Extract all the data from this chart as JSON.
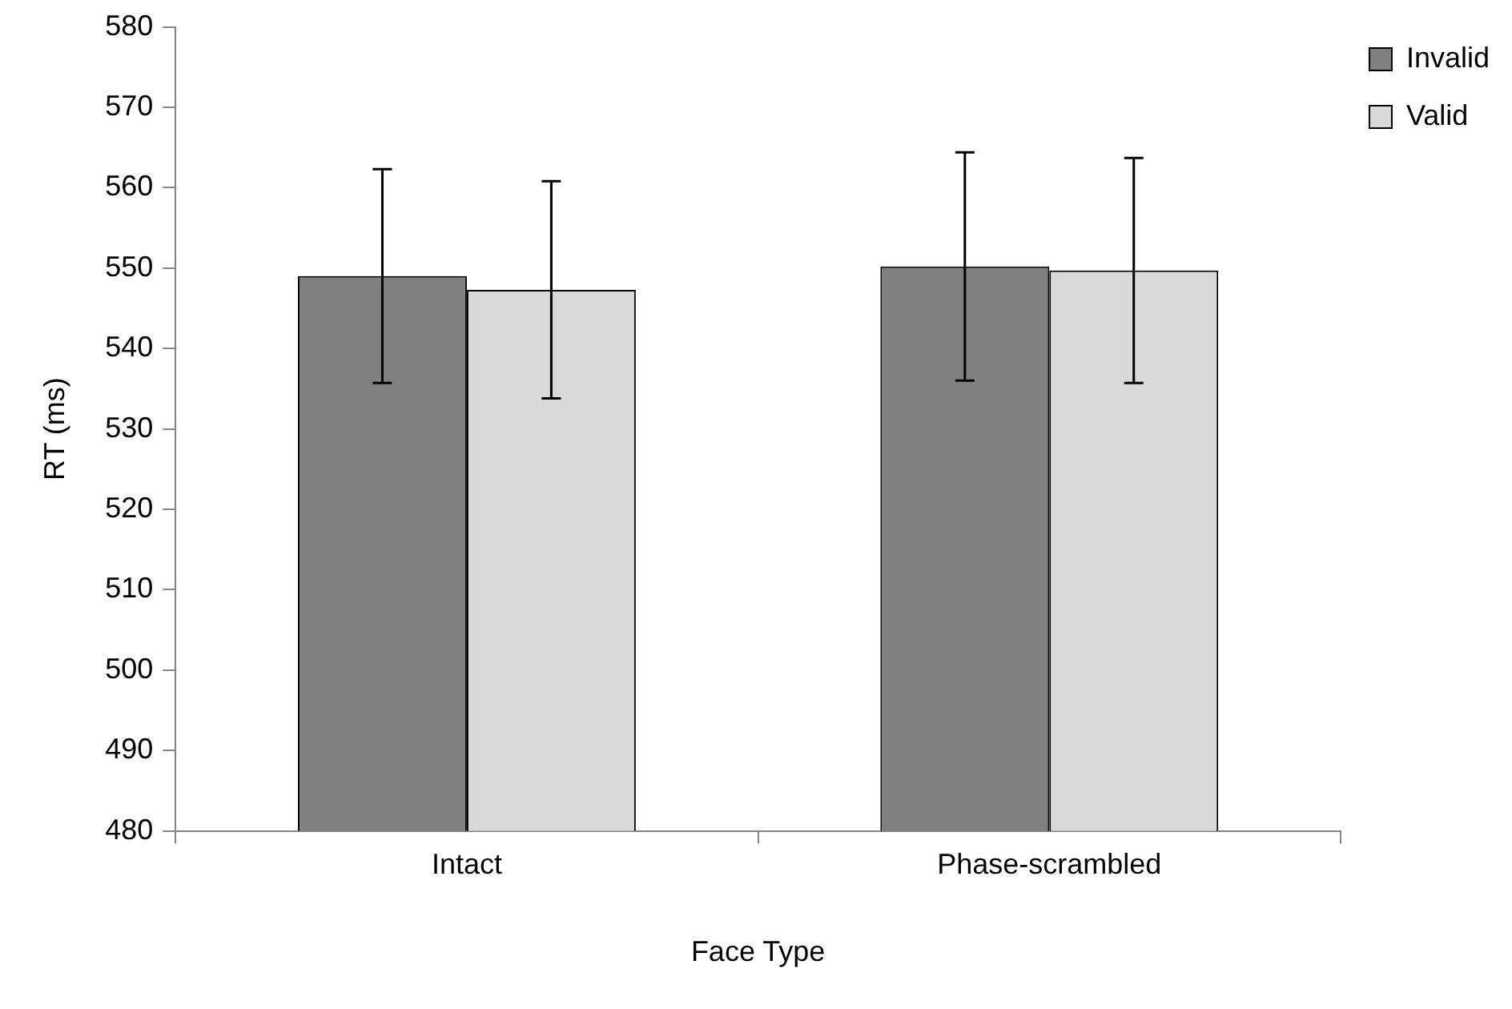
{
  "chart_data": {
    "type": "bar",
    "xlabel": "Face Type",
    "ylabel": "RT (ms)",
    "categories": [
      "Intact",
      "Phase-scrambled"
    ],
    "series": [
      {
        "name": "Invalid",
        "color": "#808080",
        "values": [
          549,
          550.2
        ],
        "errors": [
          13.3,
          14.2
        ]
      },
      {
        "name": "Valid",
        "color": "#d9d9d9",
        "values": [
          547.3,
          549.7
        ],
        "errors": [
          13.5,
          14
        ]
      }
    ],
    "ylim": [
      480,
      580
    ],
    "yticks": [
      480,
      490,
      500,
      510,
      520,
      530,
      540,
      550,
      560,
      570,
      580
    ],
    "grid": false,
    "legend": "top right"
  }
}
